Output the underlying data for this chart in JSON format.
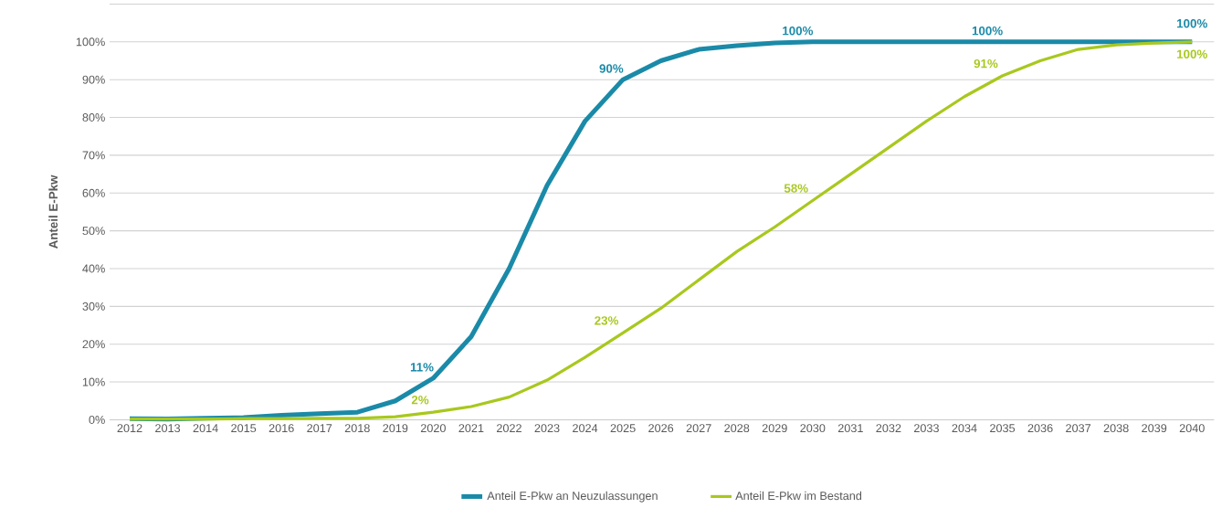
{
  "chart_data": {
    "type": "line",
    "ylabel": "Anteil E-Pkw",
    "categories": [
      "2012",
      "2013",
      "2014",
      "2015",
      "2016",
      "2017",
      "2018",
      "2019",
      "2020",
      "2021",
      "2022",
      "2023",
      "2024",
      "2025",
      "2026",
      "2027",
      "2028",
      "2029",
      "2030",
      "2031",
      "2032",
      "2033",
      "2034",
      "2035",
      "2036",
      "2037",
      "2038",
      "2039",
      "2040"
    ],
    "series": [
      {
        "name": "Anteil E-Pkw an Neuzulassungen",
        "color": "#1a8aa8",
        "values": [
          0.3,
          0.2,
          0.4,
          0.6,
          1.2,
          1.6,
          2.0,
          5,
          11,
          22,
          40,
          62,
          79,
          90,
          95,
          98,
          99,
          99.7,
          100,
          100,
          100,
          100,
          100,
          100,
          100,
          100,
          100,
          100,
          100
        ],
        "value_labels": [
          null,
          null,
          null,
          null,
          null,
          null,
          null,
          null,
          "11%",
          null,
          null,
          null,
          null,
          "90%",
          null,
          null,
          null,
          null,
          "100%",
          null,
          null,
          null,
          null,
          "100%",
          null,
          null,
          null,
          null,
          "100%"
        ]
      },
      {
        "name": "Anteil E-Pkw im Bestand",
        "color": "#a8c81e",
        "values": [
          0.2,
          0.2,
          0.2,
          0.3,
          0.3,
          0.4,
          0.4,
          0.8,
          2,
          3.5,
          6,
          10.5,
          16.5,
          23,
          29.5,
          37,
          44.5,
          51,
          58,
          65,
          72,
          79,
          85.5,
          91,
          95,
          98,
          99.2,
          99.7,
          100
        ],
        "value_labels": [
          null,
          null,
          null,
          null,
          null,
          null,
          null,
          null,
          "2%",
          null,
          null,
          null,
          null,
          "23%",
          null,
          null,
          null,
          null,
          "58%",
          null,
          null,
          null,
          null,
          "91%",
          null,
          null,
          null,
          null,
          "100%"
        ]
      }
    ],
    "ylim": [
      0,
      110
    ],
    "yticks": [
      {
        "value": 0,
        "label": "0%"
      },
      {
        "value": 10,
        "label": "10%"
      },
      {
        "value": 20,
        "label": "20%"
      },
      {
        "value": 30,
        "label": "30%"
      },
      {
        "value": 40,
        "label": "40%"
      },
      {
        "value": 50,
        "label": "50%"
      },
      {
        "value": 60,
        "label": "60%"
      },
      {
        "value": 70,
        "label": "70%"
      },
      {
        "value": 80,
        "label": "80%"
      },
      {
        "value": 90,
        "label": "90%"
      },
      {
        "value": 100,
        "label": "100%"
      },
      {
        "value": 110,
        "label": null
      }
    ],
    "grid": "y",
    "legend": "bottom",
    "marker": "none",
    "line_style": "solid"
  }
}
